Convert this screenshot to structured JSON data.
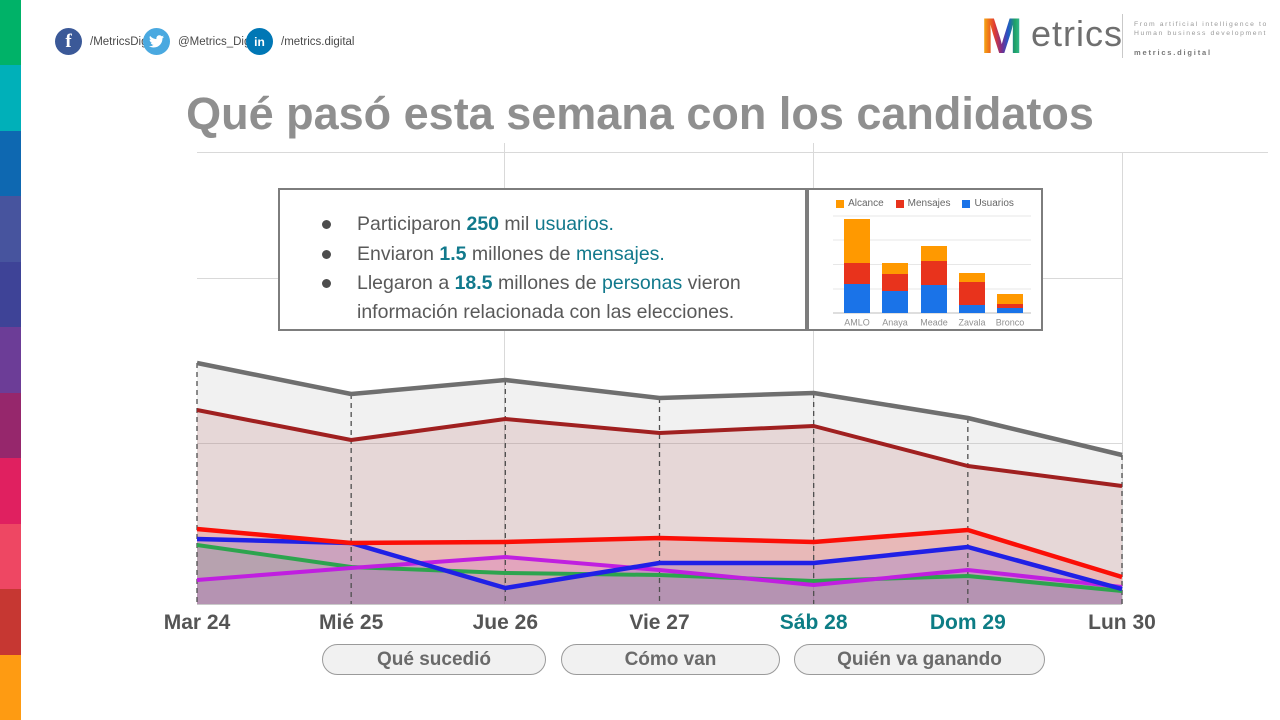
{
  "branding": {
    "stripe_colors": [
      "#00b268",
      "#00b0b9",
      "#0e68b1",
      "#47549e",
      "#3e4397",
      "#6c3d97",
      "#96276c",
      "#e02060",
      "#ee4763",
      "#c63732",
      "#fe9b12"
    ],
    "logo_m": "M",
    "logo_text": "etrics",
    "tagline_line1": "From artificial intelligence to",
    "tagline_line2": "Human business development",
    "tagline_domain": "metrics.digital"
  },
  "social": [
    {
      "network": "facebook",
      "icon": "facebook-icon",
      "glyph": "f",
      "color": "#3b5998",
      "handle": "/MetricsDigital"
    },
    {
      "network": "twitter",
      "icon": "twitter-icon",
      "glyph": "bird",
      "color": "#4aa9e0",
      "handle": "@Metrics_Digital"
    },
    {
      "network": "linkedin",
      "icon": "linkedin-icon",
      "glyph": "in",
      "color": "#0077b5",
      "handle": "/metrics.digital"
    }
  ],
  "title": "Qué pasó esta semana con los candidatos",
  "callout": {
    "bullets": [
      {
        "segments": [
          {
            "t": "Participaron ",
            "s": "g"
          },
          {
            "t": "250",
            "s": "tb"
          },
          {
            "t": " mil ",
            "s": "g"
          },
          {
            "t": "usuarios.",
            "s": "t"
          }
        ]
      },
      {
        "segments": [
          {
            "t": "Enviaron ",
            "s": "g"
          },
          {
            "t": "1.5",
            "s": "tb"
          },
          {
            "t": " millones de ",
            "s": "g"
          },
          {
            "t": "mensajes.",
            "s": "t"
          }
        ]
      },
      {
        "segments": [
          {
            "t": "Llegaron a ",
            "s": "g"
          },
          {
            "t": "18.5",
            "s": "tb"
          },
          {
            "t": " millones de ",
            "s": "g"
          },
          {
            "t": "personas",
            "s": "t"
          },
          {
            "t": " vieron información relacionada con las elecciones.",
            "s": "g"
          }
        ]
      }
    ]
  },
  "chart_data": [
    {
      "type": "bar",
      "stacked": true,
      "title": "",
      "categories": [
        "AMLO",
        "Anaya",
        "Meade",
        "Zavala",
        "Bronco"
      ],
      "series": [
        {
          "name": "Usuarios",
          "color": "#1a73e8",
          "values": [
            29,
            22,
            28,
            8,
            5
          ]
        },
        {
          "name": "Mensajes",
          "color": "#e8331c",
          "values": [
            21,
            17,
            24,
            23,
            4
          ]
        },
        {
          "name": "Alcance",
          "color": "#ff9900",
          "values": [
            44,
            11,
            15,
            9,
            10
          ]
        }
      ],
      "legend_order": [
        "Alcance",
        "Mensajes",
        "Usuarios"
      ],
      "legend_position": "top",
      "grid": true,
      "note": "relative units estimated from pixels; no y-axis labels visible"
    },
    {
      "type": "area",
      "title": "",
      "x": [
        "Mar 24",
        "Mié 25",
        "Jue 26",
        "Vie 27",
        "Sáb 28",
        "Dom 29",
        "Lun 30"
      ],
      "series": [
        {
          "name": "gray",
          "color": "#6f6f6f",
          "fill": "rgba(175,175,175,0.18)",
          "width": 4.5,
          "values": [
            241,
            210,
            224,
            206,
            211,
            186,
            149
          ]
        },
        {
          "name": "dark-red",
          "color": "#a02020",
          "fill": "rgba(160,32,32,0.12)",
          "width": 4,
          "values": [
            194,
            164,
            185,
            171,
            178,
            138,
            118
          ]
        },
        {
          "name": "red",
          "color": "#fb0e06",
          "fill": "rgba(251,14,6,0.15)",
          "width": 4.5,
          "values": [
            75,
            61,
            62,
            66,
            62,
            74,
            27
          ]
        },
        {
          "name": "blue",
          "color": "#2020e6",
          "fill": "rgba(32,32,230,0.14)",
          "width": 4.5,
          "values": [
            65,
            61,
            16,
            41,
            41,
            57,
            15
          ]
        },
        {
          "name": "magenta",
          "color": "#c01fe0",
          "fill": "rgba(192,31,224,0.13)",
          "width": 4,
          "values": [
            24,
            36,
            47,
            34,
            19,
            34,
            17
          ]
        },
        {
          "name": "green",
          "color": "#2da44e",
          "fill": "rgba(45,164,78,0.13)",
          "width": 4,
          "values": [
            59,
            37,
            31,
            29,
            23,
            28,
            13
          ]
        }
      ],
      "line_draw_order": [
        "gray",
        "dark-red",
        "green",
        "magenta",
        "blue",
        "red"
      ],
      "grid": true,
      "legend_position": "none",
      "note": "relative units estimated from pixels; no y-axis labels visible"
    }
  ],
  "x_axis_days": [
    {
      "label": "Mar 24",
      "highlight": false
    },
    {
      "label": "Mié 25",
      "highlight": false
    },
    {
      "label": "Jue 26",
      "highlight": false
    },
    {
      "label": "Vie 27",
      "highlight": false
    },
    {
      "label": "Sáb 28",
      "highlight": true
    },
    {
      "label": "Dom 29",
      "highlight": true
    },
    {
      "label": "Lun 30",
      "highlight": false
    }
  ],
  "buttons": [
    {
      "label": "Qué sucedió"
    },
    {
      "label": "Cómo van"
    },
    {
      "label": "Quién va ganando"
    }
  ],
  "colors": {
    "accent_teal": "#11798c",
    "title_gray": "#8f8f8f",
    "day_highlight": "#0d7d85"
  }
}
